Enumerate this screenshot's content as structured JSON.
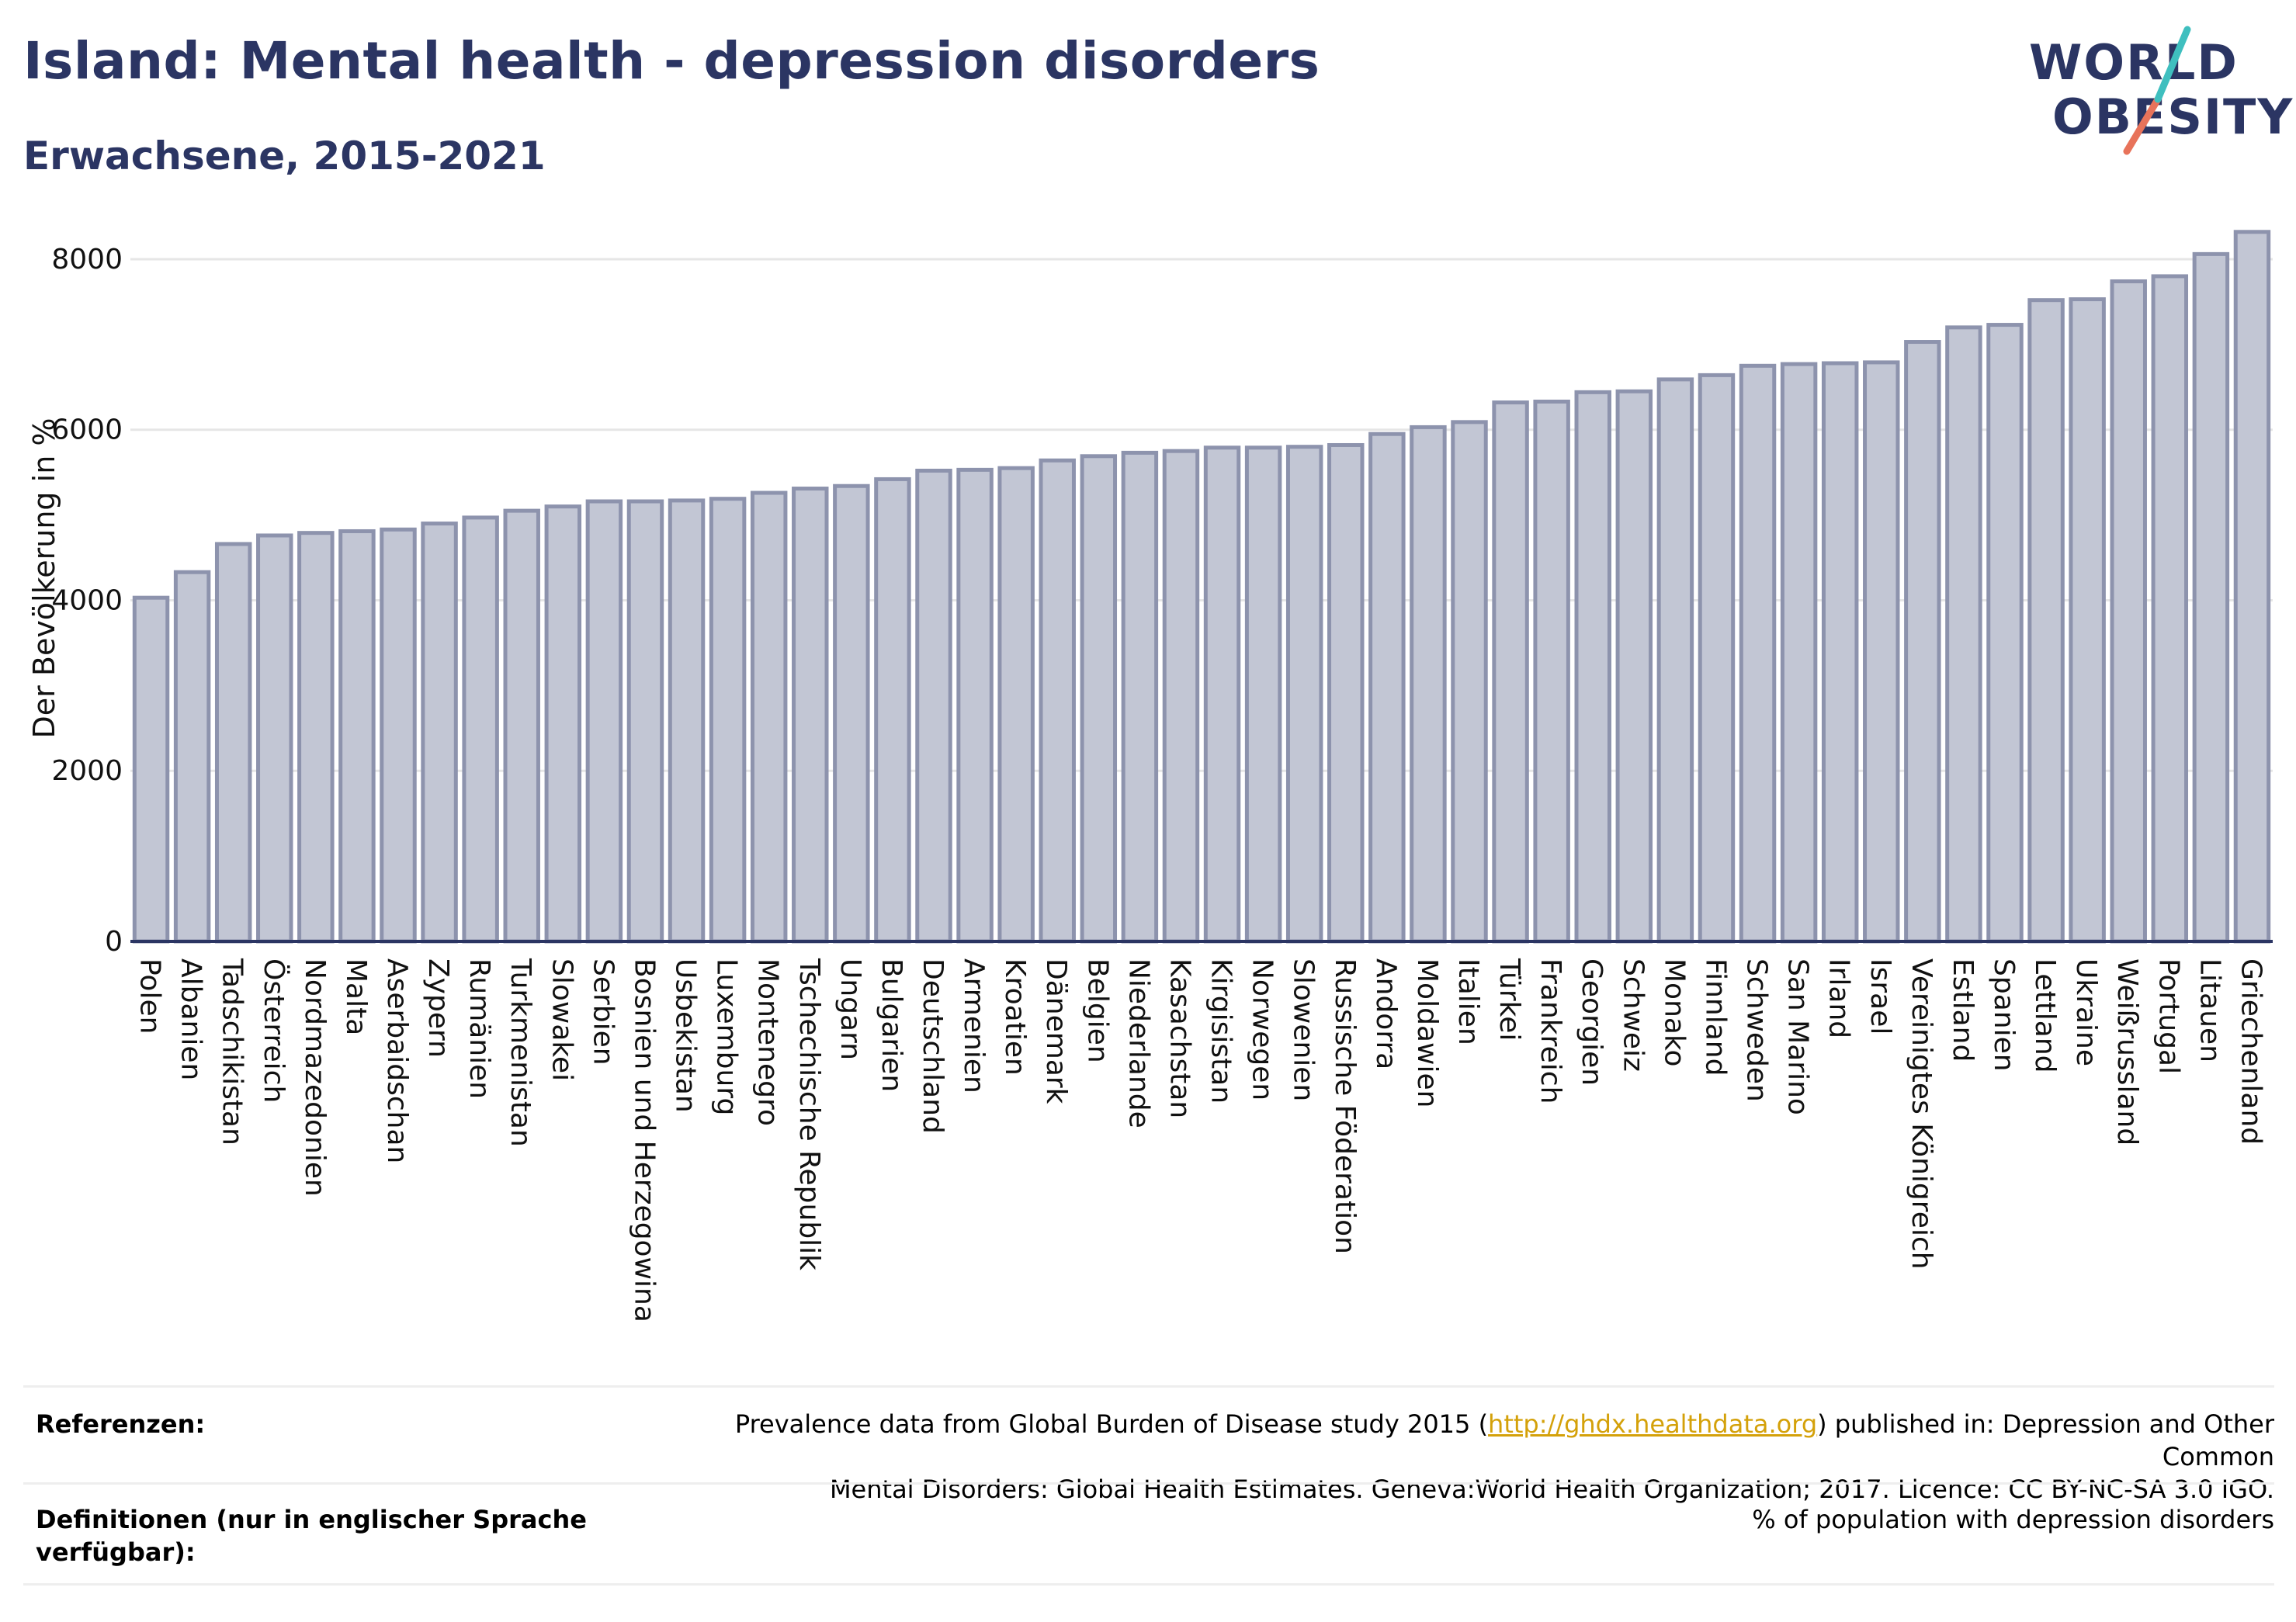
{
  "header": {
    "title": "Island: Mental health - depression disorders",
    "subtitle": "Erwachsene, 2015-2021"
  },
  "logo": {
    "line1": "WORLD",
    "line2": "OBESITY",
    "accent_teal": "#3fbfbf",
    "accent_coral": "#e8735a"
  },
  "colors": {
    "bar_fill": "#c2c6d4",
    "bar_stroke": "#8d93ad",
    "axis": "#2b3563",
    "grid": "#e6e6e6",
    "text_dark": "#2b3563"
  },
  "chart_data": {
    "type": "bar",
    "title": "Island: Mental health - depression disorders",
    "subtitle": "Erwachsene, 2015-2021",
    "ylabel": "Der Bevölkerung in %",
    "xlabel": "",
    "ylim": [
      0,
      8400
    ],
    "yticks": [
      0,
      2000,
      4000,
      6000,
      8000
    ],
    "grid": true,
    "categories": [
      "Polen",
      "Albanien",
      "Tadschikistan",
      "Österreich",
      "Nordmazedonien",
      "Malta",
      "Aserbaidschan",
      "Zypern",
      "Rumänien",
      "Turkmenistan",
      "Slowakei",
      "Serbien",
      "Bosnien und Herzegowina",
      "Usbekistan",
      "Luxemburg",
      "Montenegro",
      "Tschechische Republik",
      "Ungarn",
      "Bulgarien",
      "Deutschland",
      "Armenien",
      "Kroatien",
      "Dänemark",
      "Belgien",
      "Niederlande",
      "Kasachstan",
      "Kirgisistan",
      "Norwegen",
      "Slowenien",
      "Russische Föderation",
      "Andorra",
      "Moldawien",
      "Italien",
      "Türkei",
      "Frankreich",
      "Georgien",
      "Schweiz",
      "Monako",
      "Finnland",
      "Schweden",
      "San Marino",
      "Irland",
      "Israel",
      "Vereinigtes Königreich",
      "Estland",
      "Spanien",
      "Lettland",
      "Ukraine",
      "Weißrussland",
      "Portugal",
      "Litauen",
      "Griechenland"
    ],
    "values": [
      4030,
      4330,
      4660,
      4760,
      4790,
      4810,
      4830,
      4900,
      4970,
      5050,
      5100,
      5160,
      5160,
      5170,
      5190,
      5260,
      5310,
      5340,
      5420,
      5520,
      5530,
      5550,
      5640,
      5690,
      5730,
      5750,
      5790,
      5790,
      5800,
      5820,
      5950,
      6030,
      6090,
      6320,
      6330,
      6440,
      6450,
      6590,
      6640,
      6750,
      6770,
      6780,
      6790,
      7030,
      7200,
      7230,
      7520,
      7530,
      7740,
      7800,
      8060,
      8320
    ]
  },
  "footer": {
    "refs_label": "Referenzen:",
    "refs_text_before": "Prevalence data from Global Burden of Disease study 2015 (",
    "refs_link": "http://ghdx.healthdata.org",
    "refs_text_after": ") published in: Depression and Other Common",
    "refs_text_line2": "Mental Disorders: Global Health Estimates. Geneva:World Health Organization; 2017. Licence: CC BY-NC-SA 3.0 IGO.",
    "defs_label": "Definitionen (nur in englischer Sprache verfügbar):",
    "defs_text": "% of population with depression disorders"
  }
}
